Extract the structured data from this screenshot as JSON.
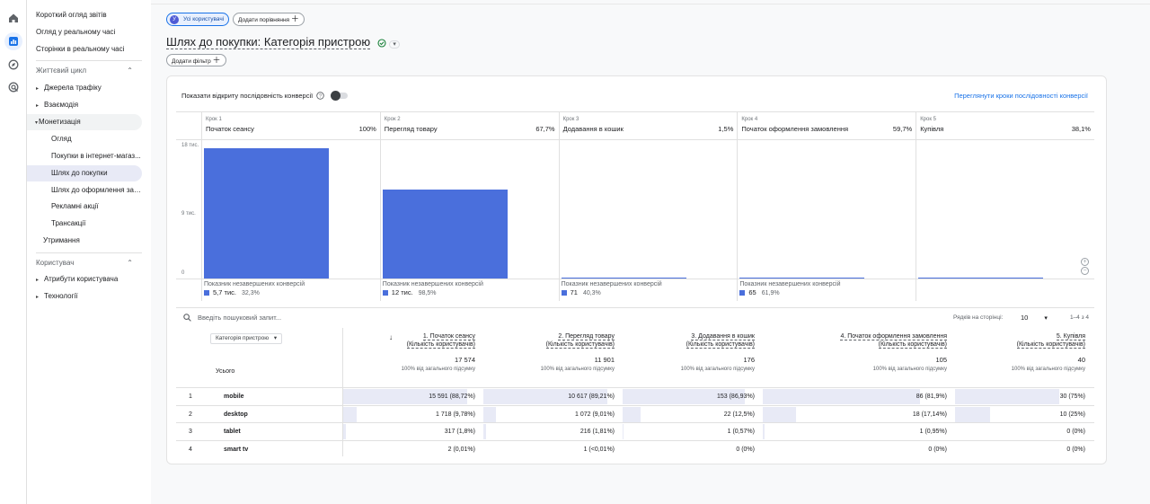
{
  "sidebar": {
    "top_items": [
      "Короткий огляд звітів",
      "Огляд у реальному часі",
      "Сторінки в реальному часі"
    ],
    "lifecycle": "Життєвий цикл",
    "groups": [
      "Джерела трафіку",
      "Взаємодія",
      "Монетизація"
    ],
    "monet_items": [
      "Огляд",
      "Покупки в інтернет-магаз...",
      "Шлях до покупки",
      "Шлях до оформлення зам...",
      "Рекламні акції",
      "Трансакції"
    ],
    "retention": "Утримання",
    "user": "Користувач",
    "user_items": [
      "Атрибути користувача",
      "Технології"
    ]
  },
  "chips": {
    "all_users": "Усі користувачі",
    "avatar": "У",
    "add_comparison": "Додати порівняння",
    "add_filter": "Додати фільтр"
  },
  "title": "Шлях до покупки: Категорія пристрою",
  "toggle_label": "Показати відкриту послідовність конверсії",
  "link": "Переглянути кроки послідовності конверсії",
  "axis": [
    "18 тис.",
    "9 тис.",
    "0"
  ],
  "steps": [
    {
      "num": "Крок 1",
      "name": "Початок сеансу",
      "pct": "100%",
      "value": 17574,
      "ab_label": "Показник незавершених конверсій",
      "ab_val": "5,7 тис.",
      "ab_pct": "32,3%"
    },
    {
      "num": "Крок 2",
      "name": "Перегляд товару",
      "pct": "67,7%",
      "value": 11901,
      "ab_label": "Показник незавершених конверсій",
      "ab_val": "12 тис.",
      "ab_pct": "98,5%"
    },
    {
      "num": "Крок 3",
      "name": "Додавання в кошик",
      "pct": "1,5%",
      "value": 176,
      "ab_label": "Показник незавершених конверсій",
      "ab_val": "71",
      "ab_pct": "40,3%"
    },
    {
      "num": "Крок 4",
      "name": "Початок оформлення замовлення",
      "pct": "59,7%",
      "value": 105,
      "ab_label": "Показник незавершених конверсій",
      "ab_val": "65",
      "ab_pct": "61,9%"
    },
    {
      "num": "Крок 5",
      "name": "Купівля",
      "pct": "38,1%",
      "value": 40
    }
  ],
  "chart_max": 18000,
  "search_placeholder": "Введіть пошуковий запит...",
  "rows_per_page_label": "Рядків на сторінці:",
  "rows_per_page": "10",
  "pagination": "1–4 з 4",
  "dimension": "Категорія пристрою",
  "total_label": "Усього",
  "columns": [
    {
      "title": "1. Початок сеансу",
      "sub": "(Кількість користувачів)",
      "total": "17 574",
      "total_sub": "100% від загального підсумку"
    },
    {
      "title": "2. Перегляд товару",
      "sub": "(Кількість користувачів)",
      "total": "11 901",
      "total_sub": "100% від загального підсумку"
    },
    {
      "title": "3. Додавання в кошик",
      "sub": "(Кількість користувачів)",
      "total": "176",
      "total_sub": "100% від загального підсумку"
    },
    {
      "title": "4. Початок оформлення замовлення",
      "sub": "(Кількість користувачів)",
      "total": "105",
      "total_sub": "100% від загального підсумку"
    },
    {
      "title": "5. Купівля",
      "sub": "(Кількість користувачів)",
      "total": "40",
      "total_sub": "100% від загального підсумку"
    }
  ],
  "rows": [
    {
      "n": "1",
      "name": "mobile",
      "cells": [
        "15 591 (88,72%)",
        "10 617 (89,21%)",
        "153 (86,93%)",
        "86 (81,9%)",
        "30 (75%)"
      ],
      "shares": [
        0.8872,
        0.8921,
        0.8693,
        0.819,
        0.75
      ]
    },
    {
      "n": "2",
      "name": "desktop",
      "cells": [
        "1 718 (9,78%)",
        "1 072 (9,01%)",
        "22 (12,5%)",
        "18 (17,14%)",
        "10 (25%)"
      ],
      "shares": [
        0.0978,
        0.0901,
        0.125,
        0.1714,
        0.25
      ]
    },
    {
      "n": "3",
      "name": "tablet",
      "cells": [
        "317 (1,8%)",
        "216 (1,81%)",
        "1 (0,57%)",
        "1 (0,95%)",
        "0 (0%)"
      ],
      "shares": [
        0.018,
        0.0181,
        0.0057,
        0.0095,
        0
      ]
    },
    {
      "n": "4",
      "name": "smart tv",
      "cells": [
        "2 (0,01%)",
        "1 (<0,01%)",
        "0 (0%)",
        "0 (0%)",
        "0 (0%)"
      ],
      "shares": [
        0.0001,
        8e-05,
        0,
        0,
        0
      ]
    }
  ],
  "colors": {
    "accent": "#4a6fdc",
    "link": "#1a73e8",
    "fill": "#e8eaf6"
  }
}
